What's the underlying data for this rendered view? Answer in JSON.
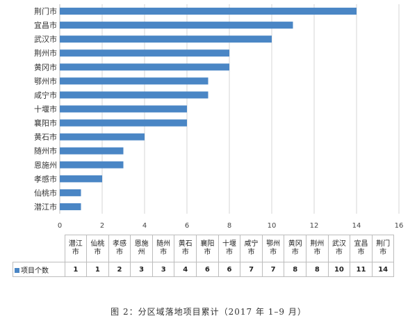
{
  "chart_data": {
    "type": "bar",
    "orientation": "horizontal",
    "categories": [
      "荆门市",
      "宜昌市",
      "武汉市",
      "荆州市",
      "黄冈市",
      "鄂州市",
      "咸宁市",
      "十堰市",
      "襄阳市",
      "黄石市",
      "随州市",
      "恩施州",
      "孝感市",
      "仙桃市",
      "潜江市"
    ],
    "values": [
      14,
      11,
      10,
      8,
      8,
      7,
      7,
      6,
      6,
      4,
      3,
      3,
      2,
      1,
      1
    ],
    "xlim": [
      0,
      16
    ],
    "xticks": [
      "0",
      "2",
      "4",
      "6",
      "8",
      "10",
      "12",
      "14",
      "16"
    ],
    "grid": true,
    "bar_color": "#4a86c5"
  },
  "table": {
    "series_name": "项目个数",
    "headers": [
      "潜江\n市",
      "仙桃\n市",
      "孝感\n市",
      "恩施\n州",
      "随州\n市",
      "黄石\n市",
      "襄阳\n市",
      "十堰\n市",
      "咸宁\n市",
      "鄂州\n市",
      "黄冈\n市",
      "荆州\n市",
      "武汉\n市",
      "宜昌\n市",
      "荆门\n市"
    ],
    "values": [
      "1",
      "1",
      "2",
      "3",
      "3",
      "4",
      "6",
      "6",
      "7",
      "7",
      "8",
      "8",
      "10",
      "11",
      "14"
    ]
  },
  "caption": "图 2：分区域落地项目累计（2017 年 1–9 月）"
}
